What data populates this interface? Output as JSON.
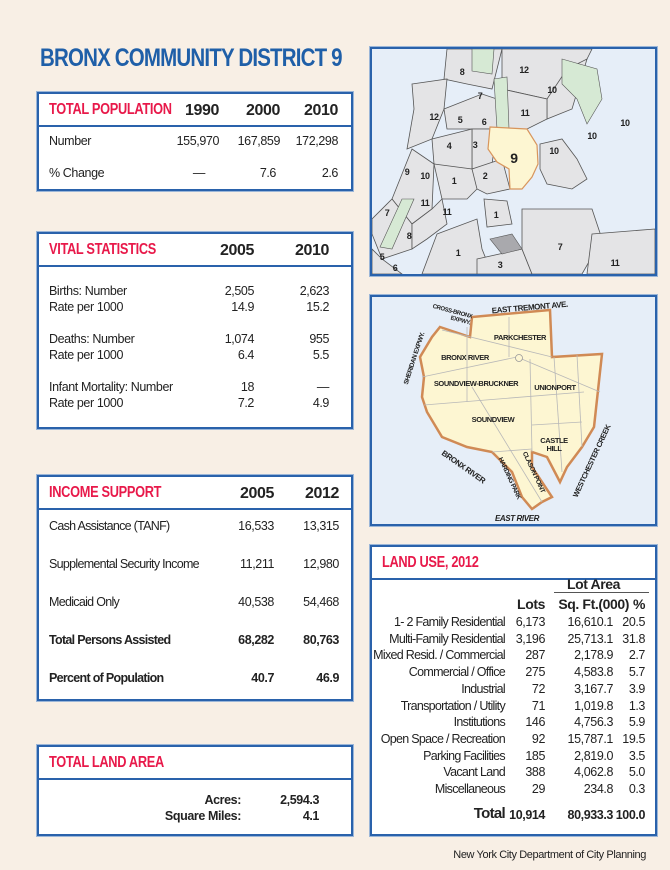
{
  "title": "BRONX COMMUNITY DISTRICT 9",
  "colors": {
    "accent_blue": "#2a62ab",
    "header_red": "#e8194a",
    "background": "#f8efe5",
    "district_highlight": "#fdf6d2"
  },
  "population": {
    "header": "TOTAL POPULATION",
    "years": [
      "1990",
      "2000",
      "2010"
    ],
    "rows": [
      {
        "label": "Number",
        "values": [
          "155,970",
          "167,859",
          "172,298"
        ]
      },
      {
        "label": "% Change",
        "values": [
          "—",
          "7.6",
          "2.6"
        ]
      }
    ]
  },
  "vital": {
    "header": "VITAL STATISTICS",
    "years": [
      "2005",
      "2010"
    ],
    "rows": [
      {
        "label": "Births: Number",
        "values": [
          "2,505",
          "2,623"
        ]
      },
      {
        "label": "Rate per 1000",
        "values": [
          "14.9",
          "15.2"
        ]
      },
      {
        "label": "Deaths: Number",
        "values": [
          "1,074",
          "955"
        ]
      },
      {
        "label": "Rate per 1000",
        "values": [
          "6.4",
          "5.5"
        ]
      },
      {
        "label": "Infant Mortality: Number",
        "values": [
          "18",
          "—"
        ]
      },
      {
        "label": "Rate per 1000",
        "values": [
          "7.2",
          "4.9"
        ]
      }
    ]
  },
  "income": {
    "header": "INCOME SUPPORT",
    "years": [
      "2005",
      "2012"
    ],
    "rows": [
      {
        "label": "Cash Assistance (TANF)",
        "values": [
          "16,533",
          "13,315"
        ]
      },
      {
        "label": "Supplemental Security Income",
        "values": [
          "11,211",
          "12,980"
        ]
      },
      {
        "label": "Medicaid Only",
        "values": [
          "40,538",
          "54,468"
        ]
      },
      {
        "label": "Total Persons Assisted",
        "values": [
          "68,282",
          "80,763"
        ]
      },
      {
        "label": "Percent of Population",
        "values": [
          "40.7",
          "46.9"
        ]
      }
    ]
  },
  "land_area": {
    "header": "TOTAL LAND AREA",
    "rows": [
      {
        "label": "Acres:",
        "value": "2,594.3"
      },
      {
        "label": "Square Miles:",
        "value": "4.1"
      }
    ]
  },
  "locator_map": {
    "labels": [
      "8",
      "12",
      "10",
      "7",
      "11",
      "12",
      "5",
      "6",
      "10",
      "10",
      "4",
      "3",
      "9",
      "10",
      "9",
      "10",
      "1",
      "2",
      "11",
      "11",
      "1",
      "7",
      "8",
      "7",
      "1",
      "3",
      "11",
      "5",
      "6"
    ]
  },
  "district_map": {
    "labels": [
      "EAST TREMONT AVE.",
      "CROSS-BRONX",
      "EXPWY.",
      "PARKCHESTER",
      "BRONX RIVER",
      "SHERIDAN EXPWY.",
      "SOUNDVIEW-BRUCKNER",
      "UNIONPORT",
      "SOUNDVIEW",
      "CASTLE",
      "HILL",
      "WESTCHESTER CREEK",
      "BRONX RIVER",
      "HARDING PARK",
      "CLASON POINT",
      "EAST RIVER"
    ]
  },
  "land_use": {
    "header": "LAND USE, 2012",
    "group_header": "Lot Area",
    "columns": [
      "Lots",
      "Sq. Ft.(000)",
      "%"
    ],
    "rows": [
      {
        "label": "1- 2 Family Residential",
        "lots": "6,173",
        "sqft": "16,610.1",
        "pct": "20.5"
      },
      {
        "label": "Multi-Family Residential",
        "lots": "3,196",
        "sqft": "25,713.1",
        "pct": "31.8"
      },
      {
        "label": "Mixed Resid. / Commercial",
        "lots": "287",
        "sqft": "2,178.9",
        "pct": "2.7"
      },
      {
        "label": "Commercial / Office",
        "lots": "275",
        "sqft": "4,583.8",
        "pct": "5.7"
      },
      {
        "label": "Industrial",
        "lots": "72",
        "sqft": "3,167.7",
        "pct": "3.9"
      },
      {
        "label": "Transportation / Utility",
        "lots": "71",
        "sqft": "1,019.8",
        "pct": "1.3"
      },
      {
        "label": "Institutions",
        "lots": "146",
        "sqft": "4,756.3",
        "pct": "5.9"
      },
      {
        "label": "Open Space / Recreation",
        "lots": "92",
        "sqft": "15,787.1",
        "pct": "19.5"
      },
      {
        "label": "Parking Facilities",
        "lots": "185",
        "sqft": "2,819.0",
        "pct": "3.5"
      },
      {
        "label": "Vacant Land",
        "lots": "388",
        "sqft": "4,062.8",
        "pct": "5.0"
      },
      {
        "label": "Miscellaneous",
        "lots": "29",
        "sqft": "234.8",
        "pct": "0.3"
      }
    ],
    "total": {
      "label": "Total",
      "lots": "10,914",
      "sqft": "80,933.3",
      "pct": "100.0"
    }
  },
  "footer": "New York City Department of City Planning"
}
